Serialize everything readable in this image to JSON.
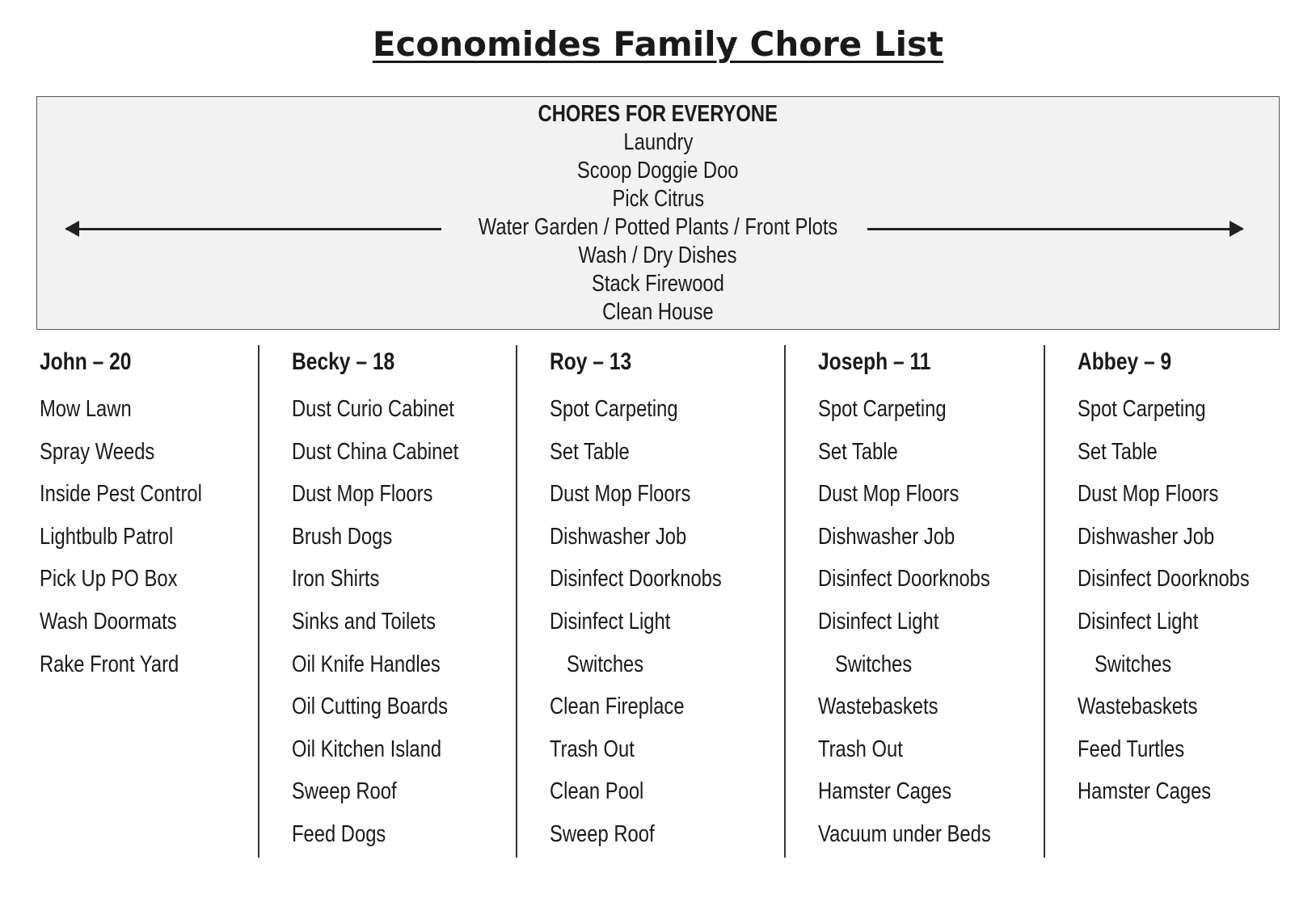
{
  "title": "Economides Family Chore List",
  "everyone": {
    "heading": "CHORES FOR EVERYONE",
    "items": [
      "Laundry",
      "Scoop Doggie Doo",
      "Pick Citrus",
      "Water Garden / Potted Plants / Front Plots",
      "Wash / Dry Dishes",
      "Stack Firewood",
      "Clean House"
    ]
  },
  "columns": [
    {
      "name": "John – 20",
      "items": [
        "Mow Lawn",
        "Spray Weeds",
        "Inside Pest Control",
        "Lightbulb Patrol",
        "Pick Up PO Box",
        "Wash Doormats",
        "Rake Front Yard"
      ]
    },
    {
      "name": "Becky – 18",
      "items": [
        "Dust Curio Cabinet",
        "Dust China Cabinet",
        "Dust Mop Floors",
        "Brush Dogs",
        "Iron Shirts",
        "Sinks and Toilets",
        "Oil Knife Handles",
        "Oil Cutting Boards",
        "Oil Kitchen Island",
        "Sweep Roof",
        "Feed Dogs"
      ]
    },
    {
      "name": "Roy – 13",
      "items": [
        "Spot Carpeting",
        "Set Table",
        "Dust Mop Floors",
        "Dishwasher Job",
        "Disinfect Doorknobs",
        "Disinfect Light",
        "Switches",
        "Clean Fireplace",
        "Trash Out",
        "Clean Pool",
        "Sweep Roof"
      ]
    },
    {
      "name": "Joseph – 11",
      "items": [
        "Spot Carpeting",
        "Set Table",
        "Dust Mop Floors",
        "Dishwasher Job",
        "Disinfect Doorknobs",
        "Disinfect Light",
        "Switches",
        "Wastebaskets",
        "Trash Out",
        "Hamster Cages",
        "Vacuum under Beds"
      ]
    },
    {
      "name": "Abbey – 9",
      "items": [
        "Spot Carpeting",
        "Set Table",
        "Dust Mop Floors",
        "Dishwasher Job",
        "Disinfect Doorknobs",
        "Disinfect Light",
        "Switches",
        "Wastebaskets",
        "Feed Turtles",
        "Hamster Cages"
      ]
    }
  ]
}
